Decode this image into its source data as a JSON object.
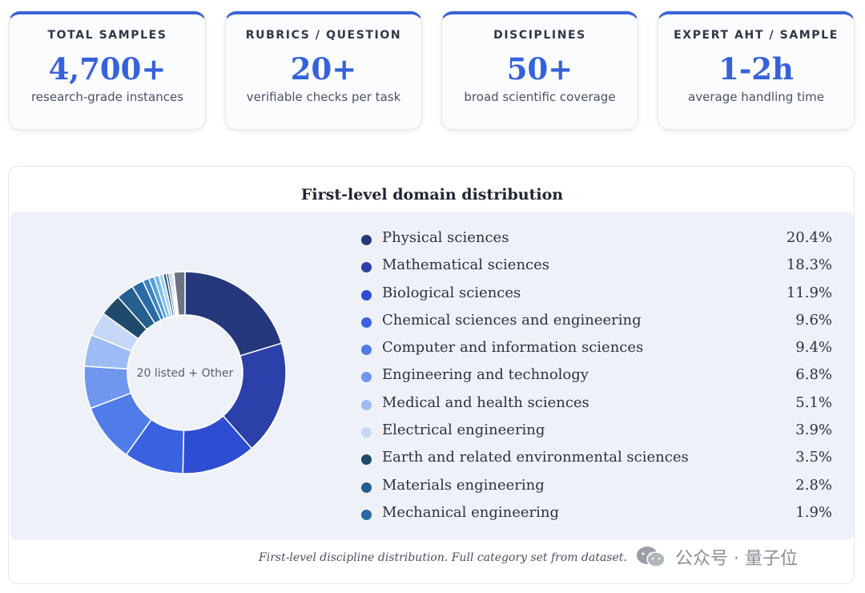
{
  "stats": [
    {
      "label": "TOTAL SAMPLES",
      "value": "4,700+",
      "sub": "research-grade instances"
    },
    {
      "label": "RUBRICS / QUESTION",
      "value": "20+",
      "sub": "verifiable checks per task"
    },
    {
      "label": "DISCIPLINES",
      "value": "50+",
      "sub": "broad scientific coverage"
    },
    {
      "label": "EXPERT AHT / SAMPLE",
      "value": "1-2h",
      "sub": "average handling time"
    }
  ],
  "chart_data": {
    "type": "pie",
    "title": "First-level domain distribution",
    "center_label": "20 listed + Other",
    "slices": [
      {
        "label": "Physical sciences",
        "value": 20.4,
        "display": "20.4%",
        "color": "#25387c"
      },
      {
        "label": "Mathematical sciences",
        "value": 18.3,
        "display": "18.3%",
        "color": "#2b40a8"
      },
      {
        "label": "Biological sciences",
        "value": 11.9,
        "display": "11.9%",
        "color": "#2d4dd3"
      },
      {
        "label": "Chemical sciences and engineering",
        "value": 9.6,
        "display": "9.6%",
        "color": "#3a62e0"
      },
      {
        "label": "Computer and information sciences",
        "value": 9.4,
        "display": "9.4%",
        "color": "#4f7ce8"
      },
      {
        "label": "Engineering and technology",
        "value": 6.8,
        "display": "6.8%",
        "color": "#6f97ef"
      },
      {
        "label": "Medical and health sciences",
        "value": 5.1,
        "display": "5.1%",
        "color": "#9dbcf5"
      },
      {
        "label": "Electrical engineering",
        "value": 3.9,
        "display": "3.9%",
        "color": "#c6d8f8"
      },
      {
        "label": "Earth and related environmental sciences",
        "value": 3.5,
        "display": "3.5%",
        "color": "#1f4a6b"
      },
      {
        "label": "Materials engineering",
        "value": 2.8,
        "display": "2.8%",
        "color": "#245f8d"
      },
      {
        "label": "Mechanical engineering",
        "value": 1.9,
        "display": "1.9%",
        "color": "#2a6ba6"
      }
    ],
    "unlisted_slices": [
      {
        "value": 1.0,
        "color": "#3b82c4"
      },
      {
        "value": 0.9,
        "color": "#58a0d8"
      },
      {
        "value": 0.8,
        "color": "#7cbbe8"
      },
      {
        "value": 0.7,
        "color": "#a6d3f2"
      },
      {
        "value": 0.5,
        "color": "#2c4e6e"
      },
      {
        "value": 0.4,
        "color": "#3c6c96"
      },
      {
        "value": 0.3,
        "color": "#5a88b0"
      },
      {
        "value": 0.3,
        "color": "#7aa0c0"
      },
      {
        "value": 0.2,
        "color": "#9ab4cc"
      },
      {
        "value": 1.8,
        "color": "#6b7480"
      }
    ]
  },
  "caption": "First-level discipline distribution. Full category set from dataset.",
  "watermark": "公众号 · 量子位"
}
